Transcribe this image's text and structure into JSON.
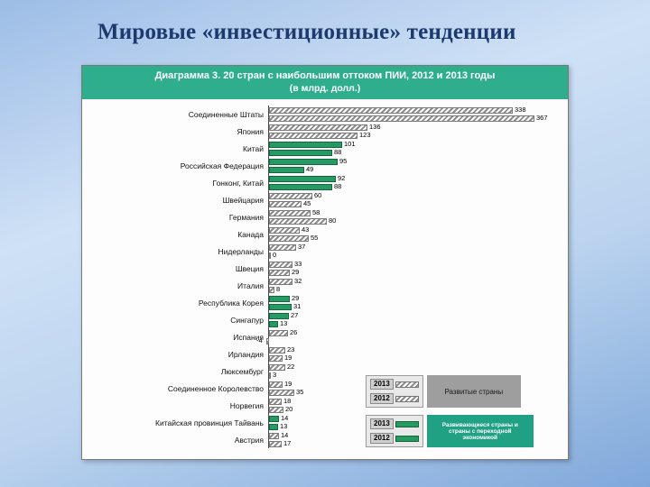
{
  "slide": {
    "title": "Мировые «инвестиционные» тенденции"
  },
  "chart": {
    "header": {
      "line1": "Диаграмма 3. 20 стран с наибольшим оттоком ПИИ, 2012 и 2013 годы",
      "line2": "(в млрд. долл.)"
    },
    "chart_data": {
      "type": "bar",
      "orientation": "horizontal",
      "title": "Диаграмма 3. 20 стран с наибольшим оттоком ПИИ, 2012 и 2013 годы",
      "subtitle": "(в млрд. долл.)",
      "unit": "млрд. долл.",
      "series": [
        "2013",
        "2012"
      ],
      "xlim": [
        -10,
        400
      ],
      "grid": false,
      "legend_position": "bottom-right-inset",
      "rows": [
        {
          "country": "Соединенные Штаты",
          "values": {
            "2013": 338,
            "2012": 367
          },
          "group": "developed"
        },
        {
          "country": "Япония",
          "values": {
            "2013": 136,
            "2012": 123
          },
          "group": "developed"
        },
        {
          "country": "Китай",
          "values": {
            "2013": 101,
            "2012": 88
          },
          "group": "developing"
        },
        {
          "country": "Российская Федерация",
          "values": {
            "2013": 95,
            "2012": 49
          },
          "group": "developing"
        },
        {
          "country": "Гонконг, Китай",
          "values": {
            "2013": 92,
            "2012": 88
          },
          "group": "developing"
        },
        {
          "country": "Швейцария",
          "values": {
            "2013": 60,
            "2012": 45
          },
          "group": "developed"
        },
        {
          "country": "Германия",
          "values": {
            "2013": 58,
            "2012": 80
          },
          "group": "developed"
        },
        {
          "country": "Канада",
          "values": {
            "2013": 43,
            "2012": 55
          },
          "group": "developed"
        },
        {
          "country": "Нидерланды",
          "values": {
            "2013": 37,
            "2012": 0
          },
          "group": "developed"
        },
        {
          "country": "Швеция",
          "values": {
            "2013": 33,
            "2012": 29
          },
          "group": "developed"
        },
        {
          "country": "Италия",
          "values": {
            "2013": 32,
            "2012": 8
          },
          "group": "developed"
        },
        {
          "country": "Республика Корея",
          "values": {
            "2013": 29,
            "2012": 31
          },
          "group": "developing"
        },
        {
          "country": "Сингапур",
          "values": {
            "2013": 27,
            "2012": 13
          },
          "group": "developing"
        },
        {
          "country": "Испания",
          "values": {
            "2013": 26,
            "2012": -4
          },
          "group": "developed"
        },
        {
          "country": "Ирландия",
          "values": {
            "2013": 23,
            "2012": 19
          },
          "group": "developed"
        },
        {
          "country": "Люксембург",
          "values": {
            "2013": 22,
            "2012": 3
          },
          "group": "developed"
        },
        {
          "country": "Соединенное Королевство",
          "values": {
            "2013": 19,
            "2012": 35
          },
          "group": "developed"
        },
        {
          "country": "Норвегия",
          "values": {
            "2013": 18,
            "2012": 20
          },
          "group": "developed"
        },
        {
          "country": "Китайская провинция Тайвань",
          "values": {
            "2013": 14,
            "2012": 13
          },
          "group": "developing"
        },
        {
          "country": "Австрия",
          "values": {
            "2013": 14,
            "2012": 17
          },
          "group": "developed"
        }
      ],
      "legend": [
        {
          "label": "Развитые страны",
          "group": "developed",
          "style": "hatched-gray"
        },
        {
          "label": "Развивающиеся страны и страны с переходной экономикой",
          "group": "developing",
          "style": "solid-green"
        }
      ],
      "colors": {
        "header_bg": "#2fae8e",
        "developing_bar": "#259a63",
        "developed_bar_hatch": "#8c8c8c",
        "legend_developed_bg": "#9e9e9e",
        "legend_developing_bg": "#21a184",
        "slide_title_color": "#1d3a6e"
      }
    }
  }
}
